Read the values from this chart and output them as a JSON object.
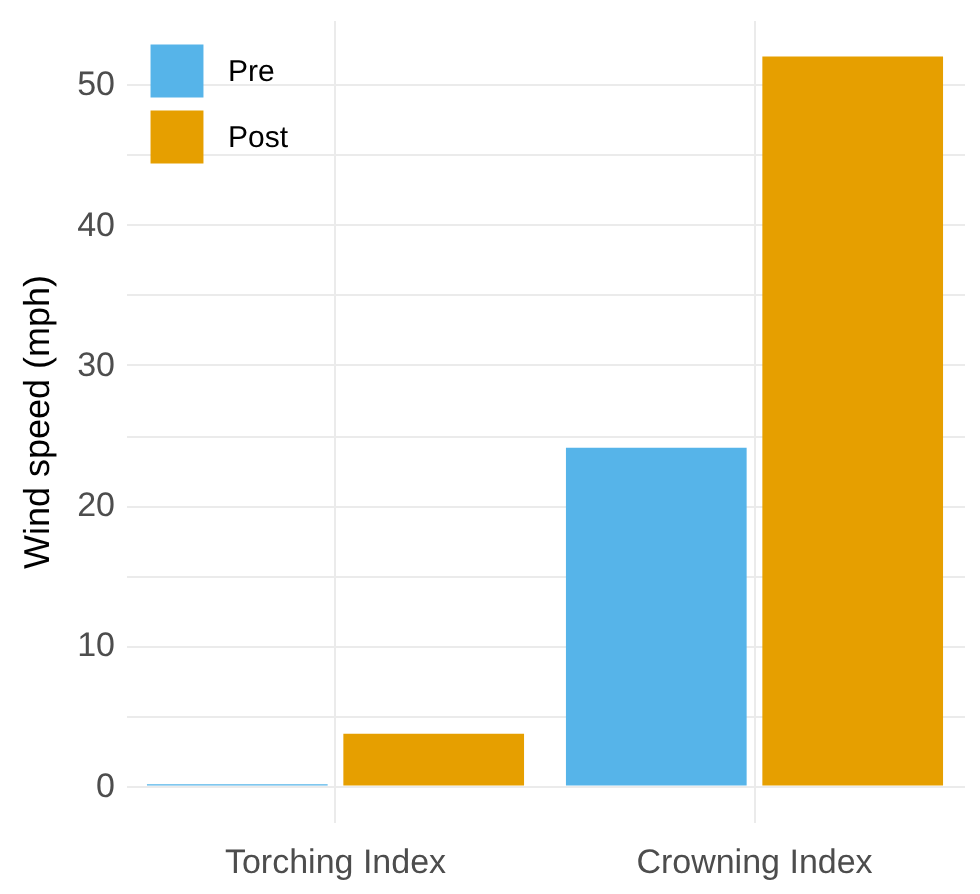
{
  "chart_data": {
    "type": "bar",
    "ylabel": "Wind speed (mph)",
    "categories": [
      "Torching Index",
      "Crowning Index"
    ],
    "series": [
      {
        "name": "Pre",
        "color": "#56b4e9",
        "values": [
          0.1,
          24.1
        ]
      },
      {
        "name": "Post",
        "color": "#e69f00",
        "values": [
          3.7,
          52
        ]
      }
    ],
    "ylim": [
      -2.6,
      54.6
    ],
    "yticks": [
      0,
      {
        "value": 5,
        "label": null
      },
      10,
      {
        "value": 15,
        "label": null
      },
      20,
      {
        "value": 25,
        "label": null
      },
      30,
      {
        "value": 35,
        "label": null
      },
      40,
      {
        "value": 45,
        "label": null
      },
      50
    ],
    "grid": true,
    "legend": "top left"
  }
}
